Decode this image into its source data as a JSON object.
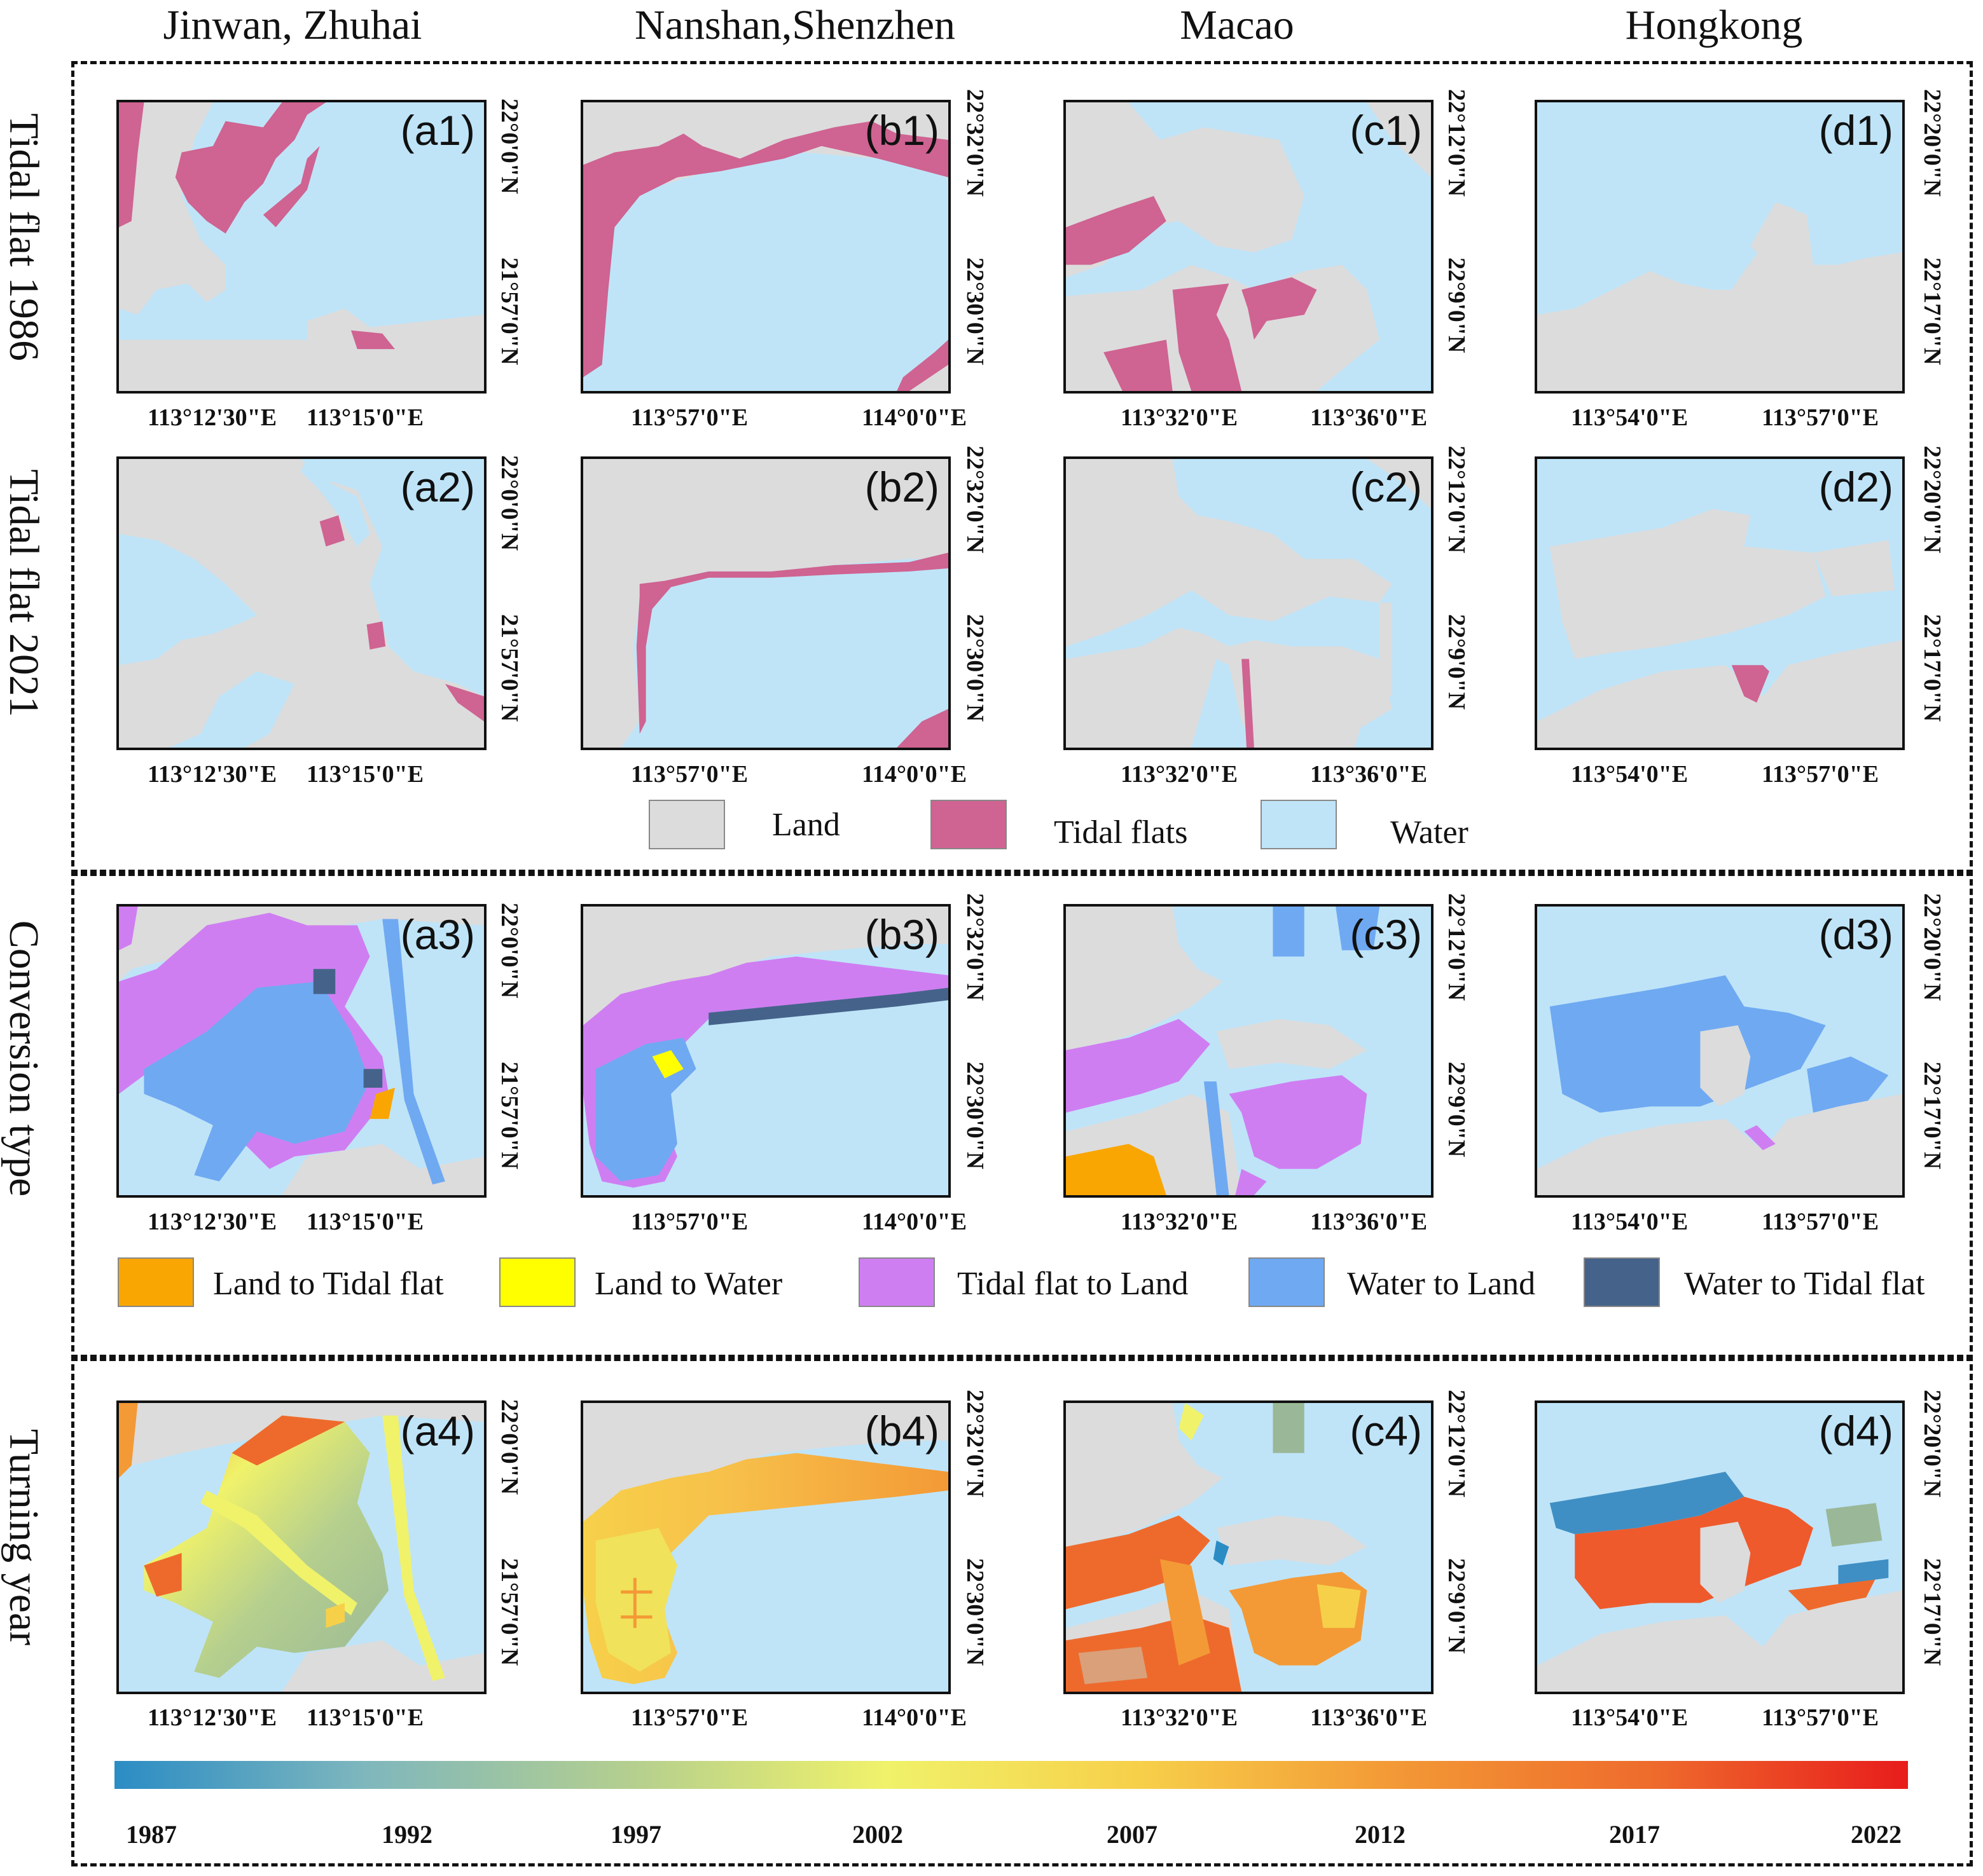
{
  "columns": [
    "Jinwan, Zhuhai",
    "Nanshan,Shenzhen",
    "Macao",
    "Hongkong"
  ],
  "rows": [
    "Tidal flat 1986",
    "Tidal flat 2021",
    "Conversion type",
    "Turning year"
  ],
  "panels": {
    "a1": "(a1)",
    "b1": "(b1)",
    "c1": "(c1)",
    "d1": "(d1)",
    "a2": "(a2)",
    "b2": "(b2)",
    "c2": "(c2)",
    "d2": "(d2)",
    "a3": "(a3)",
    "b3": "(b3)",
    "c3": "(c3)",
    "d3": "(d3)",
    "a4": "(a4)",
    "b4": "(b4)",
    "c4": "(c4)",
    "d4": "(d4)"
  },
  "x_ticks": {
    "a": [
      "113°12'30\"E",
      "113°15'0\"E"
    ],
    "b": [
      "113°57'0\"E",
      "114°0'0\"E"
    ],
    "c": [
      "113°32'0\"E",
      "113°36'0\"E"
    ],
    "d": [
      "113°54'0\"E",
      "113°57'0\"E"
    ]
  },
  "y_ticks": {
    "a": [
      "22°0'0\"N",
      "21°57'0\"N"
    ],
    "b": [
      "22°32'0\"N",
      "22°30'0\"N"
    ],
    "c": [
      "22°12'0\"N",
      "22°9'0\"N"
    ],
    "d": [
      "22°20'0\"N",
      "22°17'0\"N"
    ]
  },
  "legend_landcover": [
    {
      "label": "Land",
      "color": "#dcdcdc"
    },
    {
      "label": "Tidal flats",
      "color": "#cf6391"
    },
    {
      "label": "Water",
      "color": "#bfe4f8"
    }
  ],
  "legend_conversion": [
    {
      "label": "Land to Tidal flat",
      "color": "#f9a602"
    },
    {
      "label": "Land to Water",
      "color": "#ffff00"
    },
    {
      "label": "Tidal flat to Land",
      "color": "#cf7ef2"
    },
    {
      "label": "Water to Land",
      "color": "#6fa9f2"
    },
    {
      "label": "Water to Tidal flat",
      "color": "#45638a"
    }
  ],
  "colorbar": {
    "ticks": [
      "1987",
      "1992",
      "1997",
      "2002",
      "2007",
      "2012",
      "2017",
      "2022"
    ],
    "colors": [
      "#2b8cc4",
      "#b5cf8e",
      "#f0f26a",
      "#f39a36",
      "#e81c1c"
    ]
  },
  "colors": {
    "land": "#dcdcdc",
    "water": "#bfe4f8",
    "tidal": "#cf6391"
  }
}
